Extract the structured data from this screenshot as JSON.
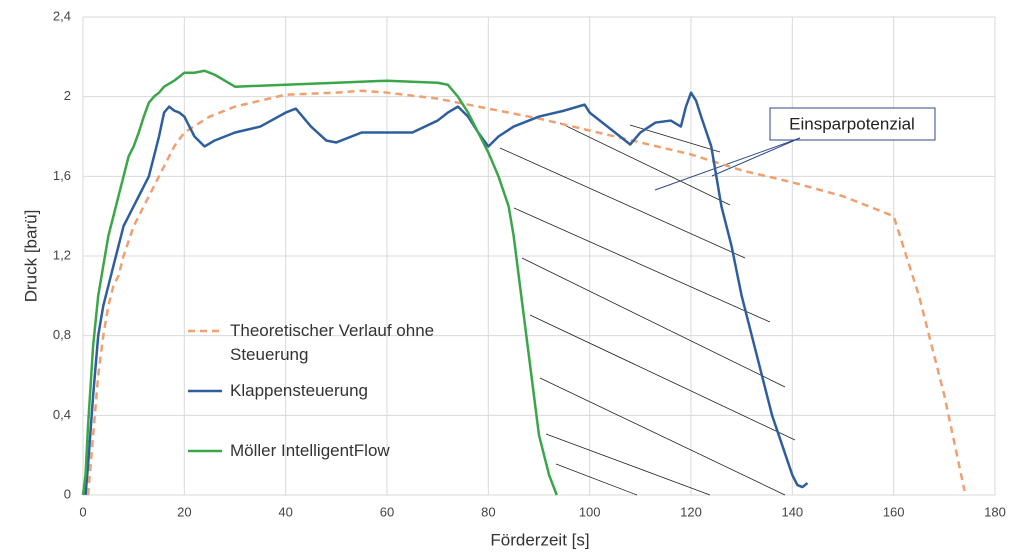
{
  "chart_data": {
    "type": "line",
    "x_label": "Förderzeit [s]",
    "y_label": "Druck [barü]",
    "annotation": "Einsparpotenzial",
    "xlim": [
      0,
      180
    ],
    "xticks": [
      0,
      20,
      40,
      60,
      80,
      100,
      120,
      140,
      160,
      180
    ],
    "ylim": [
      0,
      2.4
    ],
    "yticks": [
      0,
      {
        "value": 0.4,
        "label": "0,4"
      },
      {
        "value": 0.8,
        "label": "0,8"
      },
      {
        "value": 1.2,
        "label": "1,2"
      },
      {
        "value": 1.6,
        "label": "1,6"
      },
      2,
      {
        "value": 2.4,
        "label": "2,4"
      }
    ],
    "grid": true,
    "series": [
      {
        "name": "Theoretischer Verlauf ohne Steuerung",
        "color": "#f0a070",
        "dashed": true,
        "x": [
          1,
          2,
          3,
          4,
          5,
          6,
          7,
          8,
          10,
          12,
          15,
          18,
          20,
          25,
          30,
          40,
          50,
          55,
          60,
          70,
          80,
          90,
          100,
          110,
          120,
          130,
          140,
          150,
          160,
          165,
          170,
          174
        ],
        "values": [
          0,
          0.3,
          0.6,
          0.8,
          0.95,
          1.05,
          1.1,
          1.2,
          1.35,
          1.45,
          1.6,
          1.75,
          1.82,
          1.9,
          1.95,
          2.01,
          2.02,
          2.03,
          2.02,
          1.99,
          1.94,
          1.89,
          1.83,
          1.77,
          1.71,
          1.63,
          1.57,
          1.5,
          1.4,
          1.0,
          0.5,
          0.02
        ]
      },
      {
        "name": "Klappensteuerung",
        "color": "#2e5e9e",
        "x": [
          0.5,
          1,
          2,
          3,
          4,
          5,
          6,
          7,
          8,
          9,
          10,
          11,
          12,
          13,
          14,
          15,
          16,
          17,
          18,
          19,
          20,
          22,
          24,
          26,
          30,
          35,
          40,
          42,
          45,
          48,
          50,
          55,
          60,
          65,
          70,
          72,
          74,
          76,
          78,
          80,
          82,
          85,
          90,
          95,
          99,
          100,
          105,
          108,
          110,
          113,
          116,
          118,
          119,
          120,
          121,
          122,
          124,
          125,
          126,
          128,
          130,
          132,
          134,
          136,
          138,
          140,
          141,
          142,
          143
        ],
        "values": [
          0,
          0.15,
          0.5,
          0.8,
          0.95,
          1.05,
          1.15,
          1.25,
          1.35,
          1.4,
          1.45,
          1.5,
          1.55,
          1.6,
          1.7,
          1.8,
          1.92,
          1.95,
          1.93,
          1.92,
          1.9,
          1.8,
          1.75,
          1.78,
          1.82,
          1.85,
          1.92,
          1.94,
          1.85,
          1.78,
          1.77,
          1.82,
          1.82,
          1.82,
          1.88,
          1.92,
          1.95,
          1.9,
          1.82,
          1.75,
          1.8,
          1.85,
          1.9,
          1.93,
          1.96,
          1.92,
          1.82,
          1.76,
          1.82,
          1.87,
          1.88,
          1.85,
          1.95,
          2.02,
          1.98,
          1.9,
          1.75,
          1.6,
          1.45,
          1.25,
          1.0,
          0.8,
          0.6,
          0.4,
          0.25,
          0.1,
          0.05,
          0.04,
          0.06
        ]
      },
      {
        "name": "Möller IntelligentFlow",
        "color": "#3aa64a",
        "x": [
          0,
          0.5,
          1,
          2,
          3,
          4,
          5,
          6,
          7,
          8,
          9,
          10,
          11,
          12,
          13,
          14,
          15,
          16,
          18,
          20,
          22,
          24,
          26,
          28,
          30,
          40,
          50,
          60,
          70,
          72,
          74,
          76,
          78,
          80,
          82,
          84,
          85,
          86,
          87,
          88,
          89,
          90,
          91,
          92,
          93.5
        ],
        "values": [
          0,
          0.1,
          0.35,
          0.75,
          1.0,
          1.15,
          1.3,
          1.4,
          1.5,
          1.6,
          1.7,
          1.75,
          1.82,
          1.9,
          1.97,
          2.0,
          2.02,
          2.05,
          2.08,
          2.12,
          2.12,
          2.13,
          2.11,
          2.08,
          2.05,
          2.06,
          2.07,
          2.08,
          2.07,
          2.06,
          2.0,
          1.92,
          1.82,
          1.72,
          1.6,
          1.45,
          1.3,
          1.1,
          0.9,
          0.7,
          0.5,
          0.3,
          0.2,
          0.1,
          0.0
        ]
      }
    ]
  }
}
